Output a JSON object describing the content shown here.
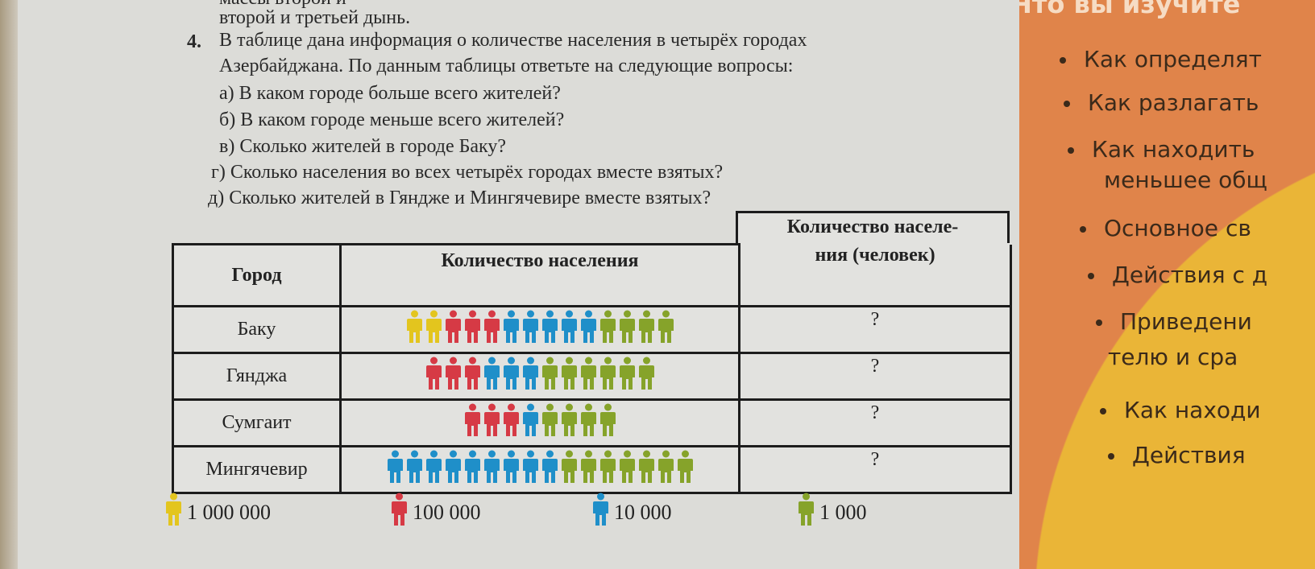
{
  "page": {
    "top_lines": [
      "массы второй и",
      "второй и третьей дынь."
    ],
    "task_number": "4.",
    "task_text_1": "В таблице дана информация о количестве населения в четырёх городах",
    "task_text_2": "Азербайджана. По данным таблицы ответьте на следующие вопросы:",
    "questions": [
      "а) В каком городе больше всего жителей?",
      "б) В каком городе меньше всего жителей?",
      "в) Сколько жителей в городе Баку?",
      "г) Сколько населения во всех четырёх городах вместе взятых?",
      "д) Сколько жителей в Гяндже и Мингячевире вместе взятых?"
    ]
  },
  "table": {
    "headers": [
      "Город",
      "Количество населения",
      "Количество населе-",
      "ния (человек)"
    ],
    "rows": [
      {
        "city": "Баку",
        "icons": {
          "million": 2,
          "hundred_thousand": 3,
          "ten_thousand": 5,
          "thousand": 4
        },
        "answer": "?"
      },
      {
        "city": "Гянджа",
        "icons": {
          "million": 0,
          "hundred_thousand": 3,
          "ten_thousand": 3,
          "thousand": 6
        },
        "answer": "?"
      },
      {
        "city": "Сумгаит",
        "icons": {
          "million": 0,
          "hundred_thousand": 3,
          "ten_thousand": 1,
          "thousand": 4
        },
        "answer": "?"
      },
      {
        "city": "Мингячевир",
        "icons": {
          "million": 0,
          "hundred_thousand": 0,
          "ten_thousand": 9,
          "thousand": 7
        },
        "answer": "?"
      }
    ]
  },
  "legend": [
    {
      "key": "million",
      "label": "1 000 000",
      "color": "#e3c51e"
    },
    {
      "key": "hundred_thousand",
      "label": "100 000",
      "color": "#d63a45"
    },
    {
      "key": "ten_thousand",
      "label": "10 000",
      "color": "#1f8fc9"
    },
    {
      "key": "thousand",
      "label": "1 000",
      "color": "#86a32a"
    }
  ],
  "panel": {
    "title": "Что вы изучите",
    "bullets": [
      "Как определят",
      "Как разлагать",
      "Как находить",
      "меньшее общ",
      "Основное св",
      "Действия с д",
      "Приведени",
      "телю и сра",
      "Как находи",
      "Действия"
    ],
    "colors": {
      "orange": "#e0844a",
      "yellow": "#eab537"
    }
  }
}
